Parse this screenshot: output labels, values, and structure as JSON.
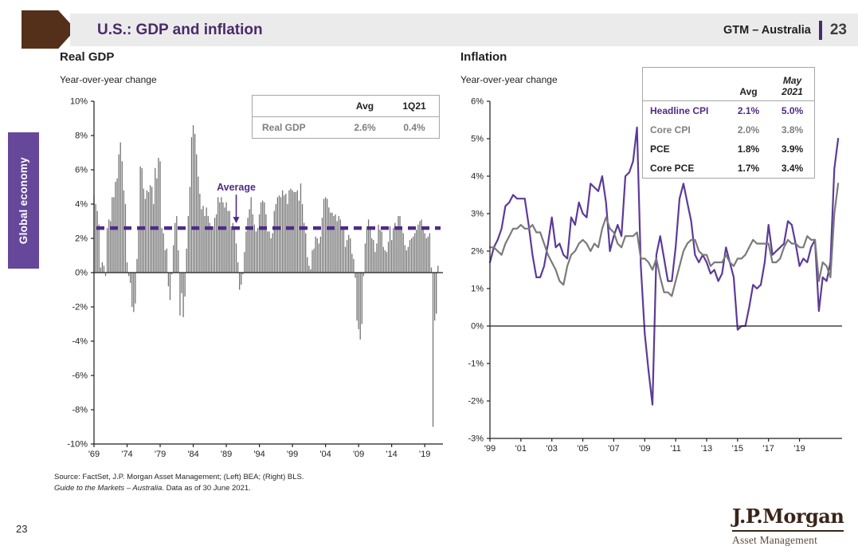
{
  "header": {
    "title": "U.S.: GDP and inflation",
    "brand": "GTM – Australia",
    "page": "23"
  },
  "sidebar": {
    "label": "Global economy"
  },
  "footer": {
    "source_line1": "Source: FactSet, J.P. Morgan Asset Management; (Left) BEA; (Right) BLS.",
    "source_italic": "Guide to the Markets – Australia",
    "source_rest": ". Data as of 30 June 2021.",
    "page": "23",
    "logo_name": "J.P.Morgan",
    "logo_sub": "Asset Management"
  },
  "colors": {
    "accent_purple": "#4a2a6a",
    "sidebar_purple": "#66489a",
    "line_purple": "#5c3a99",
    "bar_gray": "#737373",
    "line_gray": "#7a7a7a",
    "brand_brown": "#54301a",
    "band_gray": "#ebebeb"
  },
  "chart_data": [
    {
      "type": "bar",
      "title": "Real GDP",
      "subtitle": "Year-over-year change",
      "ylim": [
        -10,
        10
      ],
      "ytick_step": 2,
      "ytick_suffix": "%",
      "x_start": 1969,
      "x_step": 0.25,
      "x_end": 2021.75,
      "xticks": [
        1969,
        1974,
        1979,
        1984,
        1989,
        1994,
        1999,
        2004,
        2009,
        2014,
        2019
      ],
      "xtick_labels": [
        "'69",
        "'74",
        "'79",
        "'84",
        "'89",
        "'94",
        "'99",
        "'04",
        "'09",
        "'14",
        "'19"
      ],
      "bar_color": "#737373",
      "grid": false,
      "average_line": {
        "value": 2.6,
        "label": "Average",
        "color": "#4f2a86",
        "annotation_x": 1990.5
      },
      "inset_table": {
        "col_headers": [
          "Avg",
          "1Q21"
        ],
        "rows": [
          {
            "label": "Real GDP",
            "values": [
              "2.6%",
              "0.4%"
            ]
          }
        ]
      },
      "values": [
        4.5,
        4.0,
        3.6,
        2.8,
        0.3,
        0.6,
        0.4,
        -0.2,
        2.6,
        3.1,
        3.0,
        4.4,
        4.4,
        5.3,
        5.5,
        6.9,
        7.6,
        6.5,
        4.8,
        4.0,
        0.6,
        -0.2,
        -0.6,
        -2.0,
        -2.3,
        -1.8,
        0.8,
        2.6,
        6.2,
        6.1,
        4.9,
        4.3,
        4.8,
        4.7,
        5.1,
        5.0,
        4.0,
        6.1,
        5.5,
        6.7,
        6.5,
        2.6,
        2.3,
        1.3,
        1.4,
        -0.8,
        -1.6,
        -0.1,
        1.6,
        2.9,
        3.3,
        1.3,
        -2.5,
        -1.2,
        -2.6,
        -1.4,
        1.4,
        3.3,
        5.0,
        7.9,
        8.6,
        8.1,
        6.9,
        5.6,
        4.6,
        3.7,
        3.9,
        3.3,
        3.8,
        3.3,
        2.9,
        2.7,
        2.7,
        3.2,
        3.4,
        4.4,
        4.1,
        4.4,
        4.1,
        3.8,
        4.1,
        3.6,
        3.6,
        2.7,
        2.9,
        2.6,
        1.7,
        0.6,
        -1.0,
        -0.7,
        -0.1,
        1.2,
        2.4,
        3.2,
        3.7,
        4.4,
        3.4,
        2.8,
        2.4,
        2.6,
        3.4,
        4.1,
        4.2,
        4.1,
        3.4,
        2.4,
        2.4,
        2.0,
        2.3,
        3.6,
        4.0,
        4.4,
        4.5,
        4.4,
        4.8,
        4.5,
        4.6,
        4.0,
        4.8,
        4.9,
        4.8,
        4.7,
        4.7,
        4.8,
        4.2,
        5.2,
        4.0,
        2.9,
        2.3,
        0.9,
        0.4,
        0.2,
        1.3,
        1.4,
        2.1,
        2.0,
        1.7,
        2.1,
        3.2,
        4.3,
        4.4,
        4.3,
        3.8,
        3.5,
        3.5,
        3.3,
        3.4,
        3.0,
        3.3,
        3.1,
        2.7,
        2.6,
        1.5,
        1.9,
        2.2,
        2.0,
        1.1,
        0.8,
        -0.3,
        -2.8,
        -3.3,
        -3.9,
        -3.0,
        -0.2,
        1.7,
        2.7,
        3.1,
        2.7,
        2.0,
        1.9,
        1.2,
        1.7,
        2.8,
        2.5,
        2.4,
        1.5,
        1.3,
        1.2,
        1.8,
        2.7,
        1.9,
        2.6,
        2.9,
        2.7,
        3.3,
        3.3,
        2.7,
        2.3,
        1.6,
        1.3,
        1.5,
        1.9,
        2.0,
        2.1,
        2.3,
        2.5,
        2.8,
        3.0,
        3.1,
        2.5,
        2.3,
        2.0,
        2.1,
        2.3,
        0.3,
        -9.0,
        -2.8,
        -2.4,
        0.4
      ]
    },
    {
      "type": "line",
      "title": "Inflation",
      "subtitle": "Year-over-year change",
      "ylim": [
        -3,
        6
      ],
      "ytick_step": 1,
      "ytick_suffix": "%",
      "x_start": 1999,
      "x_step": 0.25,
      "x_end": 2021.75,
      "xticks": [
        1999,
        2001,
        2003,
        2005,
        2007,
        2009,
        2011,
        2013,
        2015,
        2017,
        2019
      ],
      "xtick_labels": [
        "'99",
        "'01",
        "'03",
        "'05",
        "'07",
        "'09",
        "'11",
        "'13",
        "'15",
        "'17",
        "'19"
      ],
      "grid": false,
      "inset_table": {
        "col_headers": [
          "Avg",
          "May 2021"
        ],
        "rows": [
          {
            "label": "Headline CPI",
            "values": [
              "2.1%",
              "5.0%"
            ]
          },
          {
            "label": "Core CPI",
            "values": [
              "2.0%",
              "3.8%"
            ]
          },
          {
            "label": "PCE",
            "values": [
              "1.8%",
              "3.9%"
            ]
          },
          {
            "label": "Core PCE",
            "values": [
              "1.7%",
              "3.4%"
            ]
          }
        ]
      },
      "series": [
        {
          "name": "Headline CPI",
          "color": "#5c3a99",
          "values": [
            1.7,
            2.1,
            2.3,
            2.6,
            3.2,
            3.3,
            3.5,
            3.4,
            3.4,
            3.4,
            2.7,
            1.9,
            1.3,
            1.3,
            1.6,
            2.2,
            2.9,
            2.1,
            2.2,
            1.9,
            1.8,
            2.9,
            2.7,
            3.3,
            3.0,
            2.9,
            3.8,
            3.7,
            3.6,
            4.0,
            3.3,
            2.0,
            2.4,
            2.7,
            2.4,
            4.0,
            4.1,
            4.4,
            5.3,
            1.6,
            -0.2,
            -1.2,
            -2.1,
            1.9,
            2.4,
            1.8,
            1.2,
            1.2,
            2.1,
            3.4,
            3.8,
            3.3,
            2.8,
            1.9,
            1.7,
            1.9,
            1.7,
            1.4,
            1.5,
            1.2,
            1.4,
            2.1,
            1.7,
            1.3,
            -0.1,
            0.0,
            0.0,
            0.5,
            1.1,
            1.0,
            1.1,
            1.7,
            2.7,
            1.9,
            2.0,
            2.1,
            2.2,
            2.8,
            2.7,
            2.2,
            1.6,
            1.8,
            1.7,
            2.1,
            2.3,
            0.4,
            1.3,
            1.2,
            1.7,
            4.2,
            5.0
          ]
        },
        {
          "name": "Core CPI",
          "color": "#7a7a7a",
          "values": [
            2.1,
            2.1,
            2.0,
            1.9,
            2.2,
            2.4,
            2.6,
            2.6,
            2.7,
            2.6,
            2.6,
            2.7,
            2.5,
            2.5,
            2.2,
            1.9,
            1.7,
            1.5,
            1.2,
            1.1,
            1.6,
            1.9,
            2.0,
            2.2,
            2.3,
            2.2,
            2.0,
            2.2,
            2.1,
            2.6,
            2.9,
            2.6,
            2.5,
            2.2,
            2.1,
            2.4,
            2.4,
            2.4,
            2.5,
            1.8,
            1.8,
            1.7,
            1.5,
            1.8,
            1.3,
            0.9,
            0.9,
            0.8,
            1.2,
            1.6,
            2.0,
            2.2,
            2.3,
            2.3,
            2.0,
            1.9,
            1.9,
            1.6,
            1.7,
            1.7,
            1.7,
            1.9,
            1.7,
            1.6,
            1.8,
            1.8,
            1.9,
            2.1,
            2.3,
            2.2,
            2.2,
            2.2,
            2.2,
            1.7,
            1.7,
            1.8,
            2.1,
            2.3,
            2.2,
            2.2,
            2.1,
            2.1,
            2.4,
            2.3,
            2.3,
            1.2,
            1.7,
            1.6,
            1.3,
            3.0,
            3.8
          ]
        }
      ]
    }
  ]
}
